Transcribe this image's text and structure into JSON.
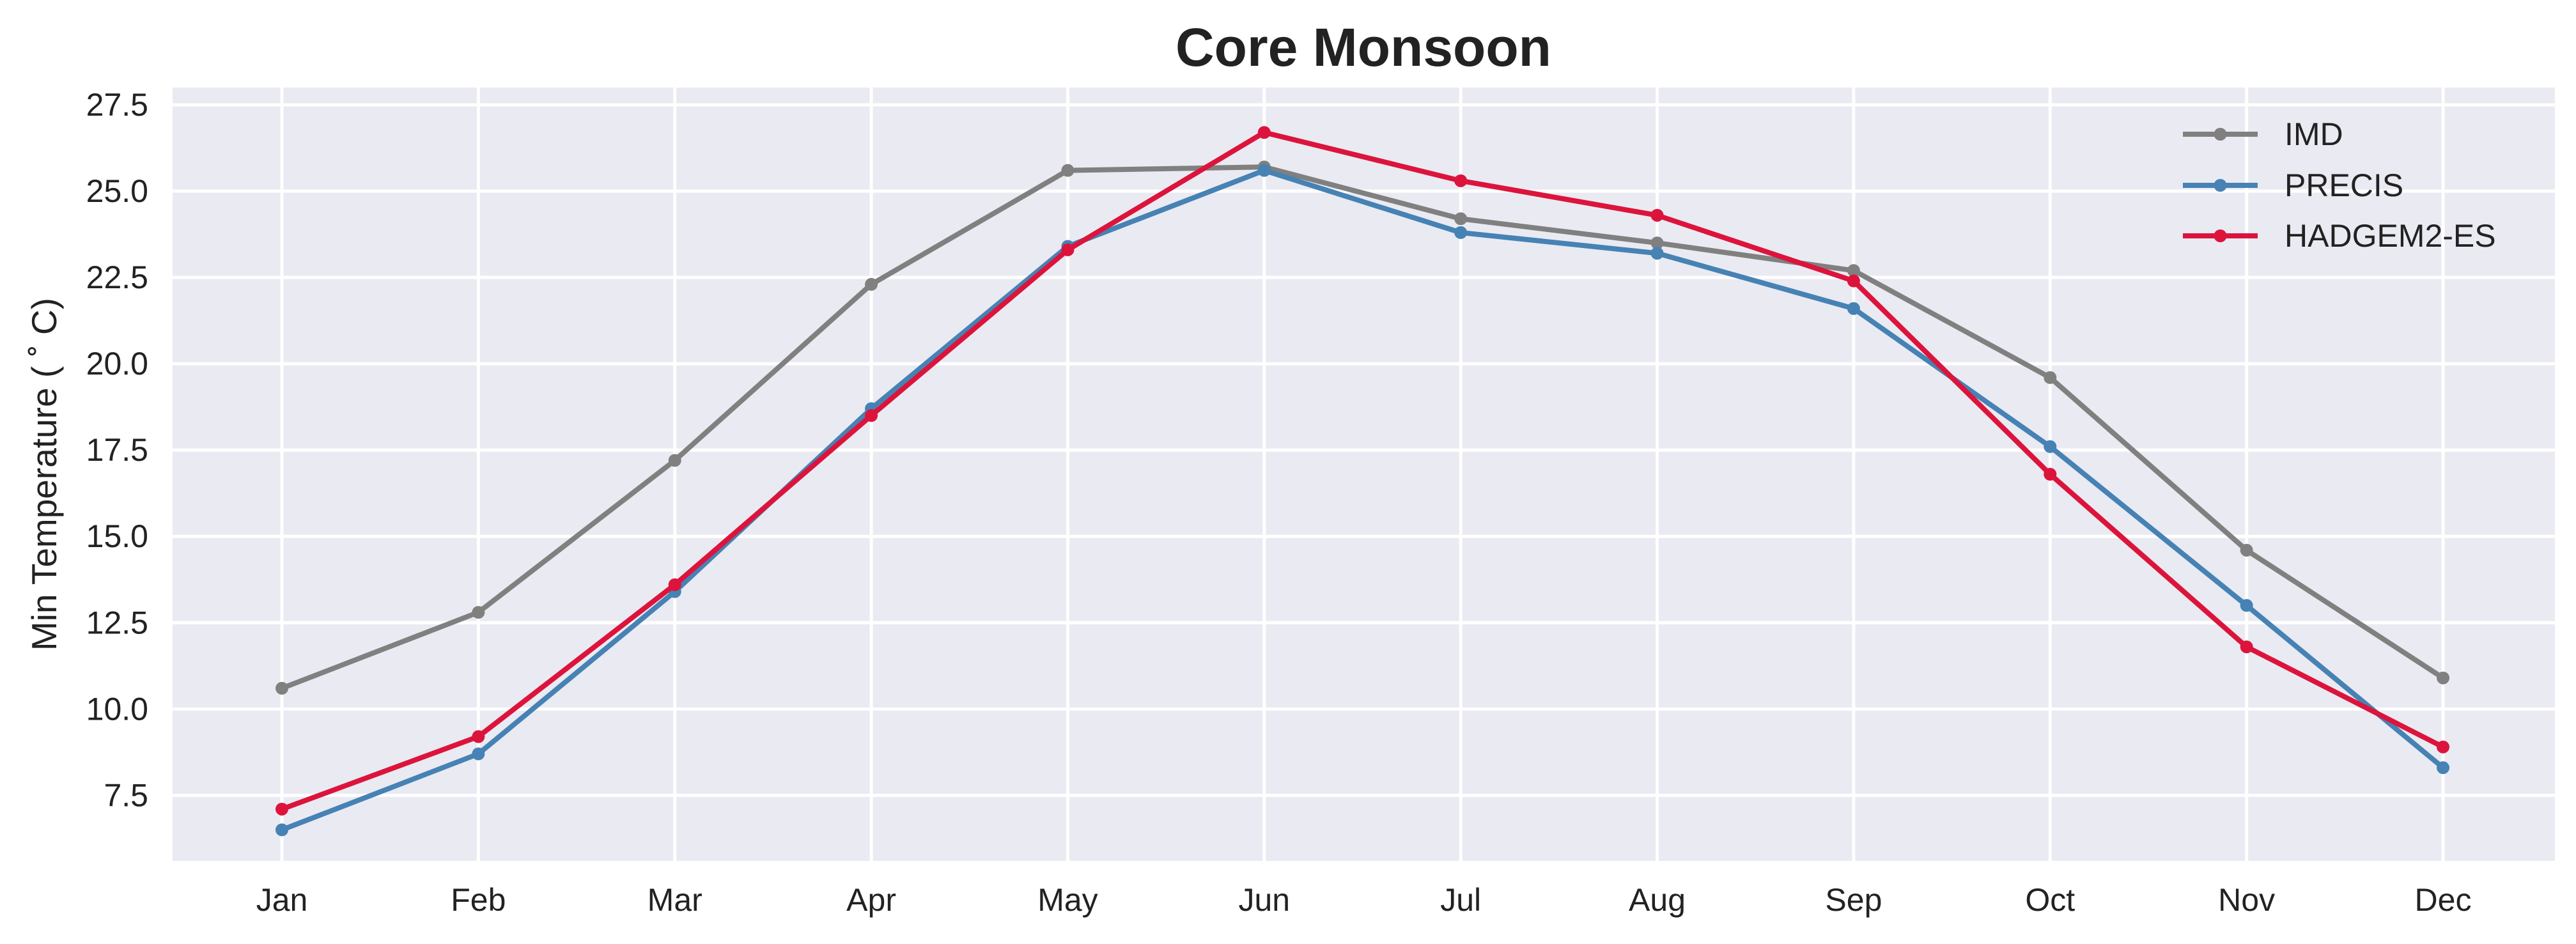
{
  "chart_data": {
    "type": "line",
    "title": "Core Monsoon",
    "xlabel": "",
    "ylabel": "Min Temperature ($^\\circ$C)",
    "ylabel_display": "Min Temperature ( ˚ C)",
    "categories": [
      "Jan",
      "Feb",
      "Mar",
      "Apr",
      "May",
      "Jun",
      "Jul",
      "Aug",
      "Sep",
      "Oct",
      "Nov",
      "Dec"
    ],
    "yticks": [
      "7.5",
      "10.0",
      "12.5",
      "15.0",
      "17.5",
      "20.0",
      "22.5",
      "25.0",
      "27.5"
    ],
    "ylim": [
      5.6,
      28.0
    ],
    "grid": true,
    "legend_position": "top-right",
    "series": [
      {
        "name": "IMD",
        "color": "#808080",
        "values": [
          10.6,
          12.8,
          17.2,
          22.3,
          25.6,
          25.7,
          24.2,
          23.5,
          22.7,
          19.6,
          14.6,
          10.9
        ]
      },
      {
        "name": "PRECIS",
        "color": "#4682b4",
        "values": [
          6.5,
          8.7,
          13.4,
          18.7,
          23.4,
          25.6,
          23.8,
          23.2,
          21.6,
          17.6,
          13.0,
          8.3
        ]
      },
      {
        "name": "HADGEM2-ES",
        "color": "#dc143c",
        "values": [
          7.1,
          9.2,
          13.6,
          18.5,
          23.3,
          26.7,
          25.3,
          24.3,
          22.4,
          16.8,
          11.8,
          8.9
        ]
      }
    ]
  }
}
